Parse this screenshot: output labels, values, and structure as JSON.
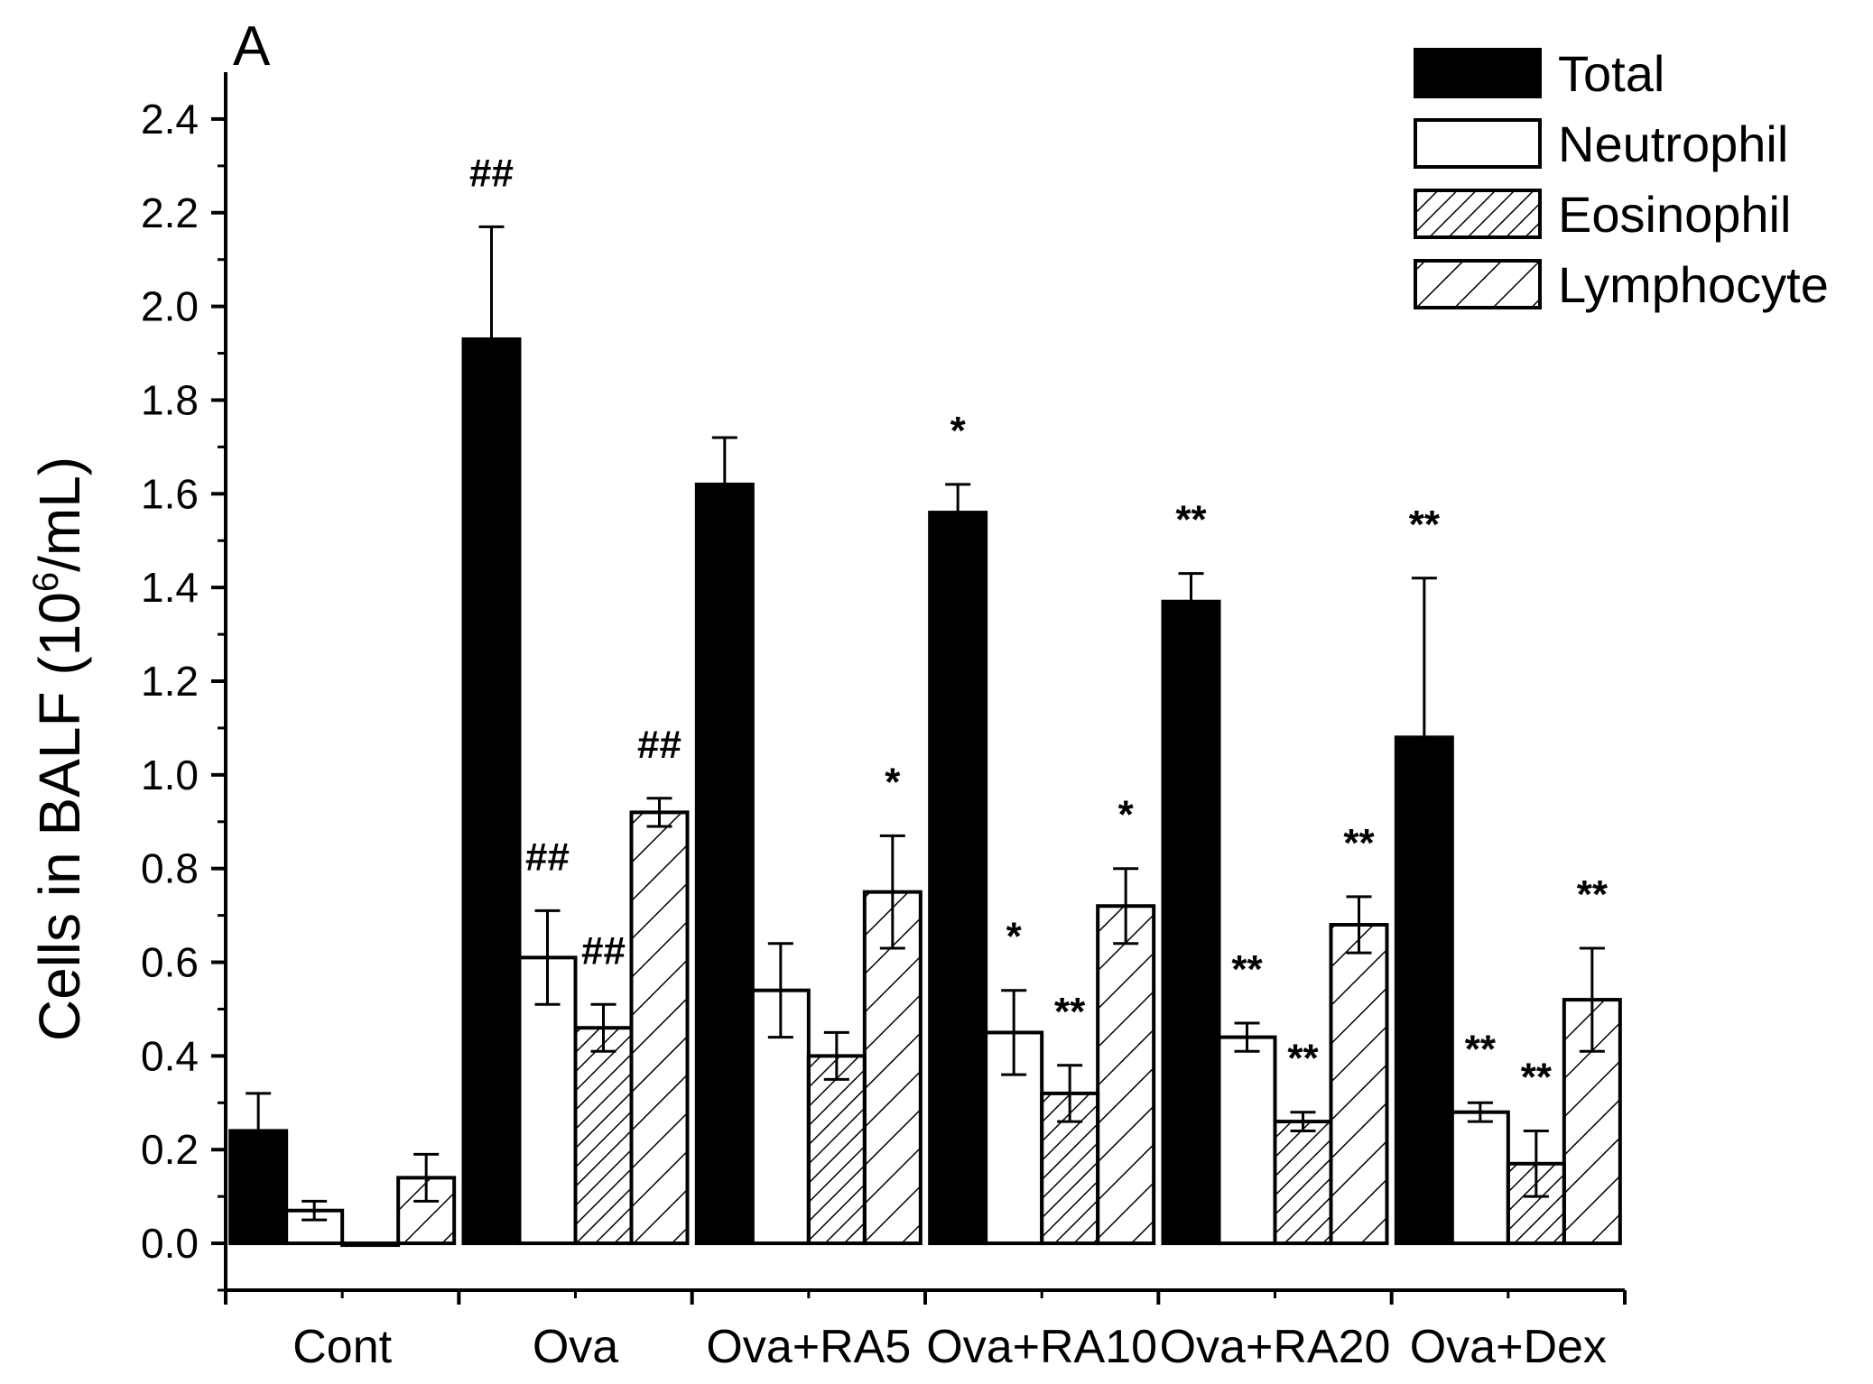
{
  "chart_data": {
    "type": "bar",
    "panel_label": "A",
    "ylabel": "Cells in BALF (10",
    "ylabel_sup": "6",
    "ylabel_end": "/mL)",
    "ylim": [
      -0.1,
      2.5
    ],
    "yticks": [
      "0.0",
      "0.2",
      "0.4",
      "0.6",
      "0.8",
      "1.0",
      "1.2",
      "1.4",
      "1.6",
      "1.8",
      "2.0",
      "2.2",
      "2.4"
    ],
    "categories": [
      "Cont",
      "Ova",
      "Ova+RA5",
      "Ova+RA10",
      "Ova+RA20",
      "Ova+Dex"
    ],
    "legend_position": "top-right",
    "series": [
      {
        "name": "Total",
        "fill": "solid",
        "values": [
          0.24,
          1.93,
          1.62,
          1.56,
          1.37,
          1.08
        ],
        "errors": [
          0.08,
          0.24,
          0.1,
          0.06,
          0.06,
          0.34
        ],
        "annotations": [
          "",
          "##",
          "",
          "*",
          "**",
          "**"
        ]
      },
      {
        "name": "Neutrophil",
        "fill": "empty",
        "values": [
          0.07,
          0.61,
          0.54,
          0.45,
          0.44,
          0.28
        ],
        "errors": [
          0.02,
          0.1,
          0.1,
          0.09,
          0.03,
          0.02
        ],
        "annotations": [
          "",
          "##",
          "",
          "*",
          "**",
          "**"
        ]
      },
      {
        "name": "Eosinophil",
        "fill": "dense-hatch",
        "values": [
          0.0,
          0.46,
          0.4,
          0.32,
          0.26,
          0.17
        ],
        "errors": [
          0.0,
          0.05,
          0.05,
          0.06,
          0.02,
          0.07
        ],
        "annotations": [
          "",
          "##",
          "",
          "**",
          "**",
          "**"
        ]
      },
      {
        "name": "Lymphocyte",
        "fill": "sparse-hatch",
        "values": [
          0.14,
          0.92,
          0.75,
          0.72,
          0.68,
          0.52
        ],
        "errors": [
          0.05,
          0.03,
          0.12,
          0.08,
          0.06,
          0.11
        ],
        "annotations": [
          "",
          "##",
          "*",
          "*",
          "**",
          "**"
        ]
      }
    ]
  }
}
